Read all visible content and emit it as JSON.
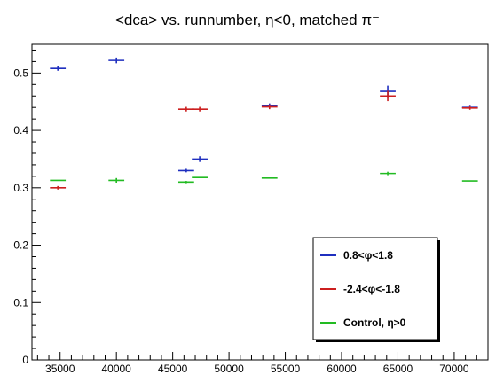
{
  "chart_data": {
    "type": "scatter",
    "title": "<dca> vs. runnumber, η<0, matched π⁻",
    "xlabel": "",
    "ylabel": "",
    "xlim": [
      32500,
      73000
    ],
    "ylim": [
      0,
      0.55
    ],
    "grid": false,
    "legend_position": "bottom-right",
    "x_ticks": [
      35000,
      40000,
      45000,
      50000,
      55000,
      60000,
      65000,
      70000
    ],
    "x_tick_labels": [
      "35000",
      "40000",
      "45000",
      "50000",
      "55000",
      "60000",
      "65000",
      "70000"
    ],
    "y_ticks": [
      0,
      0.1,
      0.2,
      0.3,
      0.4,
      0.5
    ],
    "y_tick_labels": [
      "0",
      "0.1",
      "0.2",
      "0.3",
      "0.4",
      "0.5"
    ],
    "series": [
      {
        "name": "0.8<φ<1.8",
        "color": "#1f2fbf",
        "points": [
          {
            "x": 34800,
            "y": 0.508,
            "xerr": 700,
            "yerr": 0.004
          },
          {
            "x": 40000,
            "y": 0.522,
            "xerr": 700,
            "yerr": 0.005
          },
          {
            "x": 46200,
            "y": 0.33,
            "xerr": 700,
            "yerr": 0.003
          },
          {
            "x": 47400,
            "y": 0.35,
            "xerr": 700,
            "yerr": 0.005
          },
          {
            "x": 53600,
            "y": 0.443,
            "xerr": 700,
            "yerr": 0.004
          },
          {
            "x": 64100,
            "y": 0.468,
            "xerr": 700,
            "yerr": 0.01
          },
          {
            "x": 71400,
            "y": 0.44,
            "xerr": 700,
            "yerr": 0.003
          }
        ]
      },
      {
        "name": "-2.4<φ<-1.8",
        "color": "#cc1f1f",
        "points": [
          {
            "x": 34800,
            "y": 0.3,
            "xerr": 700,
            "yerr": 0.003
          },
          {
            "x": 46200,
            "y": 0.437,
            "xerr": 700,
            "yerr": 0.004
          },
          {
            "x": 47400,
            "y": 0.437,
            "xerr": 700,
            "yerr": 0.004
          },
          {
            "x": 53600,
            "y": 0.441,
            "xerr": 700,
            "yerr": 0.004
          },
          {
            "x": 64100,
            "y": 0.46,
            "xerr": 700,
            "yerr": 0.009
          },
          {
            "x": 71400,
            "y": 0.439,
            "xerr": 700,
            "yerr": 0.003
          }
        ]
      },
      {
        "name": "Control, η>0",
        "color": "#22bb22",
        "points": [
          {
            "x": 34800,
            "y": 0.313,
            "xerr": 700,
            "yerr": 0.0
          },
          {
            "x": 40000,
            "y": 0.313,
            "xerr": 700,
            "yerr": 0.004
          },
          {
            "x": 46200,
            "y": 0.31,
            "xerr": 700,
            "yerr": 0.002
          },
          {
            "x": 47400,
            "y": 0.318,
            "xerr": 700,
            "yerr": 0.0
          },
          {
            "x": 53600,
            "y": 0.317,
            "xerr": 700,
            "yerr": 0.0
          },
          {
            "x": 64100,
            "y": 0.325,
            "xerr": 700,
            "yerr": 0.003
          },
          {
            "x": 71400,
            "y": 0.312,
            "xerr": 700,
            "yerr": 0.0
          }
        ]
      }
    ]
  }
}
